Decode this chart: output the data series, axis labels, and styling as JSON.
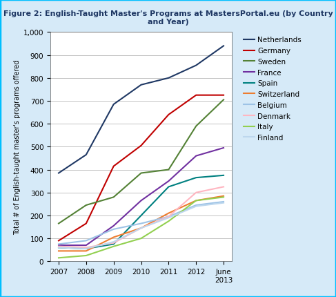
{
  "title": "Figure 2: English-Taught Master's Programs at MastersPortal.eu (by Country and Year)",
  "ylabel": "Total # of English-taught master's programs offered",
  "years": [
    "2007",
    "2008",
    "2009",
    "2010",
    "2011",
    "2012",
    "June\n2013"
  ],
  "x_values": [
    0,
    1,
    2,
    3,
    4,
    5,
    6
  ],
  "ylim": [
    0,
    1000
  ],
  "ytick_vals": [
    0,
    100,
    200,
    300,
    400,
    500,
    600,
    700,
    800,
    900,
    1000
  ],
  "series": [
    {
      "name": "Netherlands",
      "color": "#1F3864",
      "values": [
        385,
        465,
        685,
        770,
        800,
        855,
        940
      ]
    },
    {
      "name": "Germany",
      "color": "#C00000",
      "values": [
        90,
        165,
        415,
        505,
        640,
        725,
        725
      ]
    },
    {
      "name": "Sweden",
      "color": "#538135",
      "values": [
        165,
        245,
        280,
        385,
        400,
        590,
        705
      ]
    },
    {
      "name": "France",
      "color": "#7030A0",
      "values": [
        70,
        70,
        155,
        265,
        350,
        460,
        495
      ]
    },
    {
      "name": "Spain",
      "color": "#008080",
      "values": [
        60,
        55,
        75,
        200,
        325,
        365,
        375
      ]
    },
    {
      "name": "Switzerland",
      "color": "#ED7D31",
      "values": [
        45,
        45,
        105,
        145,
        210,
        265,
        285
      ]
    },
    {
      "name": "Belgium",
      "color": "#9DC3E6",
      "values": [
        75,
        90,
        140,
        165,
        195,
        245,
        260
      ]
    },
    {
      "name": "Denmark",
      "color": "#FFB6C1",
      "values": [
        65,
        60,
        80,
        145,
        195,
        300,
        325
      ]
    },
    {
      "name": "Italy",
      "color": "#92D050",
      "values": [
        15,
        25,
        65,
        100,
        175,
        265,
        280
      ]
    },
    {
      "name": "Finland",
      "color": "#BDD7EE",
      "values": [
        60,
        55,
        85,
        145,
        190,
        240,
        255
      ]
    }
  ],
  "bg_color": "#FFFFFF",
  "outer_bg": "#D6EAF8",
  "grid_color": "#AAAAAA",
  "border_color": "#00BFFF",
  "title_fontsize": 8.0,
  "axis_fontsize": 7.0,
  "legend_fontsize": 7.5,
  "tick_fontsize": 7.5
}
